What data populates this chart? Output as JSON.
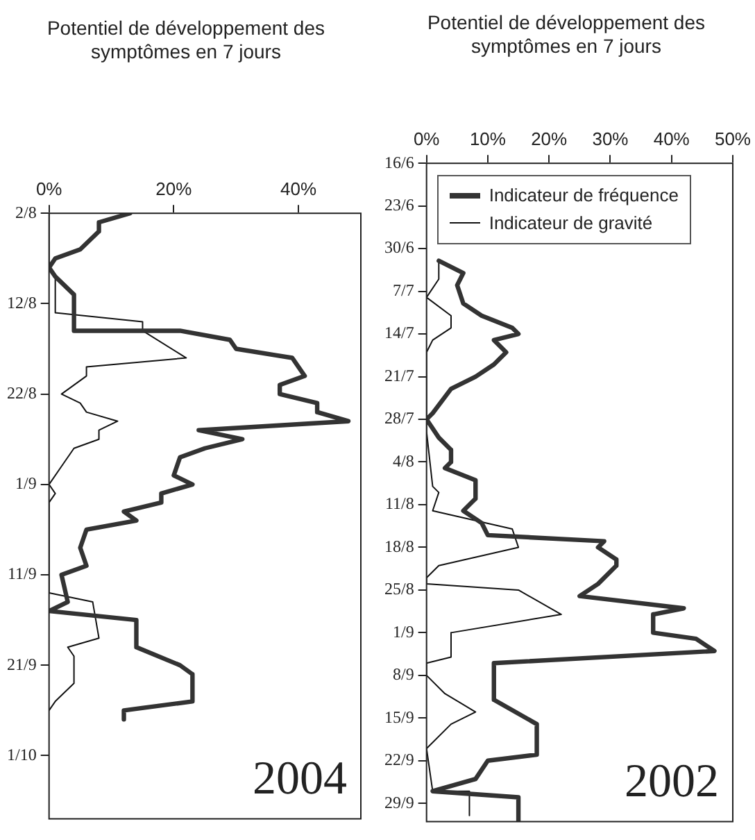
{
  "chart_data": [
    {
      "type": "line",
      "orientation": "horizontal",
      "xlabel": "Potentiel de développement des symptômes en 7 jours",
      "annotations": [
        "2004"
      ],
      "ylim": [
        "2004-10-08",
        "2004-08-02"
      ],
      "yticks": [
        {
          "value": "2004-08-02",
          "label": "2/8"
        },
        {
          "value": "2004-08-12",
          "label": "12/8"
        },
        {
          "value": "2004-08-22",
          "label": "22/8"
        },
        {
          "value": "2004-09-01",
          "label": "1/9"
        },
        {
          "value": "2004-09-11",
          "label": "11/9"
        },
        {
          "value": "2004-09-21",
          "label": "21/9"
        },
        {
          "value": "2004-10-01",
          "label": "1/10"
        }
      ],
      "xlim": [
        0,
        50
      ],
      "xticks": [
        {
          "value": 0,
          "label": "0%"
        },
        {
          "value": 20,
          "label": "20%"
        },
        {
          "value": 40,
          "label": "40%"
        }
      ],
      "grid": false,
      "legend": false,
      "marker": "none",
      "line_style": "solid",
      "series": [
        {
          "color": "#333333",
          "x": [
            "2004-08-02",
            "2004-08-03",
            "2004-08-04",
            "2004-08-06",
            "2004-08-07",
            "2004-08-08",
            "2004-08-09",
            "2004-08-11",
            "2004-08-15",
            "2004-08-15",
            "2004-08-16",
            "2004-08-17",
            "2004-08-18",
            "2004-08-20",
            "2004-08-21",
            "2004-08-22",
            "2004-08-23",
            "2004-08-24",
            "2004-08-25",
            "2004-08-26",
            "2004-08-27",
            "2004-08-28",
            "2004-08-29",
            "2004-08-31",
            "2004-09-01",
            "2004-09-02",
            "2004-09-03",
            "2004-09-04",
            "2004-09-05",
            "2004-09-06",
            "2004-09-08",
            "2004-09-10",
            "2004-09-11",
            "2004-09-14",
            "2004-09-15",
            "2004-09-16",
            "2004-09-17",
            "2004-09-19",
            "2004-09-21",
            "2004-09-22",
            "2004-09-25",
            "2004-09-26",
            "2004-09-27"
          ],
          "values": [
            13,
            8,
            8,
            5,
            1,
            0,
            1,
            4,
            4,
            21,
            29,
            30,
            39,
            41,
            37,
            37,
            43,
            43,
            48,
            24,
            31,
            25,
            21,
            20,
            23,
            18,
            18,
            12,
            14,
            6,
            5,
            6,
            2,
            3,
            0,
            14,
            14,
            14,
            21,
            23,
            23,
            12,
            12
          ]
        },
        {
          "color": "#111111",
          "x": [
            "2004-08-02",
            "2004-08-07",
            "2004-08-08",
            "2004-08-09",
            "2004-08-13",
            "2004-08-14",
            "2004-08-15",
            "2004-08-18",
            "2004-08-19",
            "2004-08-20",
            "2004-08-22",
            "2004-08-23",
            "2004-08-24",
            "2004-08-25",
            "2004-08-26",
            "2004-08-27",
            "2004-08-28",
            "2004-08-30",
            "2004-09-01",
            "2004-09-02",
            "2004-09-03",
            "2004-09-13",
            "2004-09-14",
            "2004-09-18",
            "2004-09-19",
            "2004-09-20",
            "2004-09-23",
            "2004-09-25",
            "2004-09-26"
          ],
          "values": [
            0,
            0,
            0,
            1,
            1,
            15,
            15,
            22,
            6,
            6,
            2,
            5,
            6,
            11,
            8,
            8,
            4,
            2,
            0,
            1,
            0,
            0,
            7,
            8,
            3,
            4,
            4,
            1,
            0
          ]
        }
      ]
    },
    {
      "type": "line",
      "orientation": "horizontal",
      "xlabel": "Potentiel de développement des symptômes en 7 jours",
      "annotations": [
        "2002"
      ],
      "ylim": [
        "2002-10-02",
        "2002-06-16"
      ],
      "yticks": [
        {
          "value": "2002-06-16",
          "label": "16/6"
        },
        {
          "value": "2002-06-23",
          "label": "23/6"
        },
        {
          "value": "2002-06-30",
          "label": "30/6"
        },
        {
          "value": "2002-07-07",
          "label": "7/7"
        },
        {
          "value": "2002-07-14",
          "label": "14/7"
        },
        {
          "value": "2002-07-21",
          "label": "21/7"
        },
        {
          "value": "2002-07-28",
          "label": "28/7"
        },
        {
          "value": "2002-08-04",
          "label": "4/8"
        },
        {
          "value": "2002-08-11",
          "label": "11/8"
        },
        {
          "value": "2002-08-18",
          "label": "18/8"
        },
        {
          "value": "2002-08-25",
          "label": "25/8"
        },
        {
          "value": "2002-09-01",
          "label": "1/9"
        },
        {
          "value": "2002-09-08",
          "label": "8/9"
        },
        {
          "value": "2002-09-15",
          "label": "15/9"
        },
        {
          "value": "2002-09-22",
          "label": "22/9"
        },
        {
          "value": "2002-09-29",
          "label": "29/9"
        }
      ],
      "xlim": [
        0,
        50
      ],
      "xticks": [
        {
          "value": 0,
          "label": "0%"
        },
        {
          "value": 10,
          "label": "10%"
        },
        {
          "value": 20,
          "label": "20%"
        },
        {
          "value": 30,
          "label": "30%"
        },
        {
          "value": 40,
          "label": "40%"
        },
        {
          "value": 50,
          "label": "50%"
        }
      ],
      "grid": false,
      "legend": "top left",
      "marker": "none",
      "line_style": "solid",
      "series": [
        {
          "name": "Indicateur de fréquence",
          "color": "#333333",
          "x": [
            "2002-07-02",
            "2002-07-04",
            "2002-07-06",
            "2002-07-09",
            "2002-07-11",
            "2002-07-13",
            "2002-07-14",
            "2002-07-15",
            "2002-07-17",
            "2002-07-19",
            "2002-07-21",
            "2002-07-23",
            "2002-07-27",
            "2002-07-28",
            "2002-07-31",
            "2002-08-02",
            "2002-08-04",
            "2002-08-05",
            "2002-08-07",
            "2002-08-10",
            "2002-08-12",
            "2002-08-14",
            "2002-08-16",
            "2002-08-17",
            "2002-08-18",
            "2002-08-20",
            "2002-08-21",
            "2002-08-24",
            "2002-08-26",
            "2002-08-28",
            "2002-08-29",
            "2002-09-01",
            "2002-09-02",
            "2002-09-04",
            "2002-09-06",
            "2002-09-12",
            "2002-09-16",
            "2002-09-21",
            "2002-09-22",
            "2002-09-25",
            "2002-09-27",
            "2002-09-28",
            "2002-10-02"
          ],
          "values": [
            2,
            6,
            5,
            6,
            9,
            14,
            15,
            11,
            13,
            11,
            8,
            4,
            1,
            0,
            2,
            4,
            4,
            3,
            8,
            8,
            6,
            9,
            10,
            29,
            28,
            31,
            31,
            28,
            25,
            42,
            37,
            37,
            44,
            47,
            11,
            11,
            18,
            18,
            10,
            8,
            1,
            15,
            15
          ]
        },
        {
          "name": "Indicateur de gravité",
          "color": "#111111",
          "x": [
            "2002-07-02",
            "2002-07-05",
            "2002-07-08",
            "2002-07-11",
            "2002-07-13",
            "2002-07-15",
            "2002-07-17",
            "2002-07-30",
            "2002-08-08",
            "2002-08-09",
            "2002-08-12",
            "2002-08-15",
            "2002-08-18",
            "2002-08-21",
            "2002-08-23",
            "2002-08-24",
            "2002-08-25",
            "2002-08-29",
            "2002-09-01",
            "2002-09-02",
            "2002-09-05",
            "2002-09-06",
            "2002-09-08",
            "2002-09-11",
            "2002-09-14",
            "2002-09-16",
            "2002-09-20",
            "2002-09-27",
            "2002-09-27",
            "2002-10-01"
          ],
          "values": [
            2,
            2,
            0,
            4,
            4,
            1,
            0,
            0,
            1,
            2,
            1,
            14,
            15,
            2,
            0,
            0,
            15,
            22,
            4,
            4,
            4,
            0,
            0,
            3,
            8,
            4,
            0,
            1,
            7,
            7
          ]
        }
      ]
    }
  ]
}
